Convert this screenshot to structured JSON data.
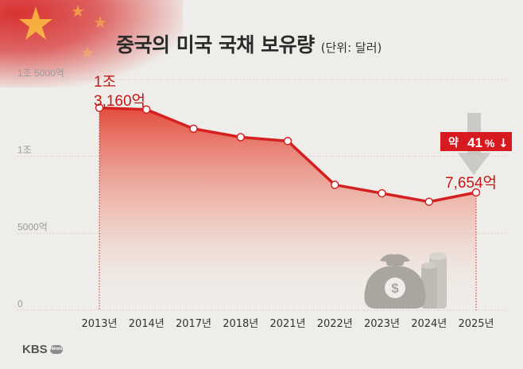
{
  "title": "중국의 미국 국채 보유량",
  "subtitle": "(단위: 달러)",
  "logo": {
    "text": "KBS",
    "badge": "News"
  },
  "colors": {
    "line": "#d42020",
    "fill": "#e23a2a",
    "badge_bg": "#d71920",
    "accent_text": "#c41818"
  },
  "chart_data": {
    "type": "area",
    "x": [
      "2013년",
      "2014년",
      "2017년",
      "2018년",
      "2021년",
      "2022년",
      "2023년",
      "2024년",
      "2025년"
    ],
    "series": [
      {
        "values": [
          13160,
          13050,
          11800,
          11250,
          11000,
          8150,
          7600,
          7050,
          7654
        ]
      }
    ],
    "unit": "억 달러",
    "ylim": [
      0,
      15000
    ],
    "yticks": [
      {
        "value": 0,
        "label": "0"
      },
      {
        "value": 5000,
        "label": "5000억"
      },
      {
        "value": 10000,
        "label": "1조"
      },
      {
        "value": 15000,
        "label": "1조 5000억"
      }
    ],
    "annotations": {
      "start_label_line1": "1조",
      "start_label_line2": "3,160억",
      "end_label": "7,654억",
      "change_badge_prefix": "약",
      "change_badge_value": "41",
      "change_badge_suffix": "%",
      "change_badge_arrow": "↓"
    },
    "icons": [
      "money-bag-icon",
      "coin-stack-icon",
      "down-arrow-icon"
    ],
    "grid": "horizontal dotted lines"
  }
}
